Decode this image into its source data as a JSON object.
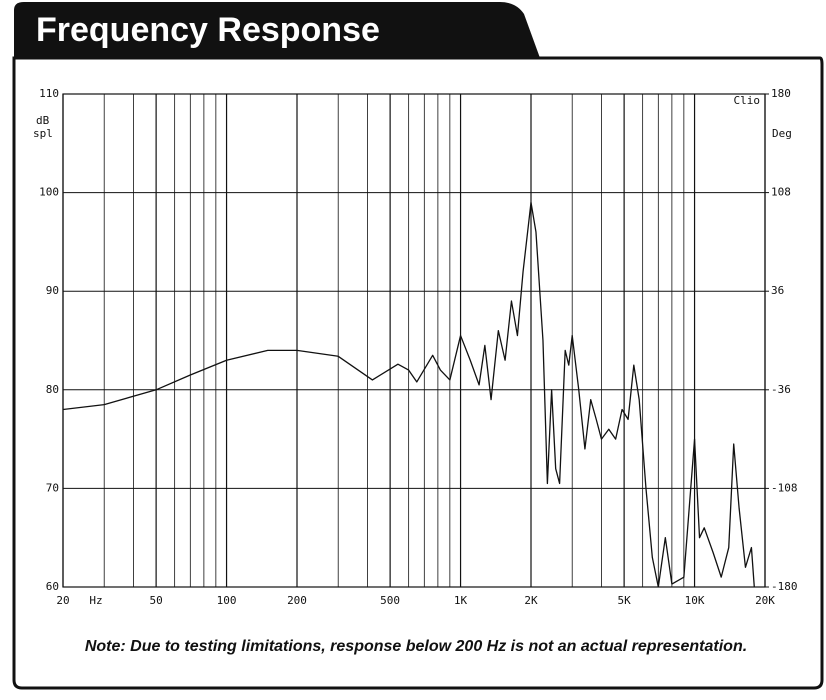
{
  "chart_data": {
    "type": "line",
    "title": "Frequency Response",
    "note": "Note:  Due to testing limitations, response below 200 Hz is not an actual representation.",
    "ylabel": [
      "dB",
      "spl"
    ],
    "y2label": "Deg",
    "watermark": "Clio",
    "x_unit": "Hz",
    "xlog": true,
    "grid": true,
    "xlim": [
      20,
      20000
    ],
    "xticks": [
      20,
      50,
      100,
      200,
      500,
      {
        "value": 1000,
        "label": "1K"
      },
      {
        "value": 2000,
        "label": "2K"
      },
      {
        "value": 5000,
        "label": "5K"
      },
      {
        "value": 10000,
        "label": "10K"
      },
      {
        "value": 20000,
        "label": "20K"
      }
    ],
    "xgrid": [
      30,
      40,
      60,
      70,
      80,
      90,
      300,
      400,
      600,
      700,
      800,
      900,
      3000,
      4000,
      6000,
      7000,
      8000,
      9000
    ],
    "ylim": [
      60,
      110
    ],
    "yticks": [
      60,
      70,
      80,
      90,
      100,
      110
    ],
    "y2lim": [
      -180,
      180
    ],
    "y2ticks": [
      -180,
      -108,
      -36,
      36,
      108,
      180
    ],
    "x": [
      20,
      30,
      50,
      70,
      100,
      150,
      200,
      300,
      420,
      540,
      600,
      650,
      760,
      820,
      900,
      1000,
      1100,
      1200,
      1270,
      1350,
      1450,
      1550,
      1650,
      1750,
      1850,
      2000,
      2100,
      2250,
      2350,
      2450,
      2550,
      2650,
      2800,
      2900,
      3000,
      3200,
      3400,
      3600,
      3800,
      4000,
      4300,
      4600,
      4900,
      5200,
      5500,
      5800,
      6200,
      6600,
      7000,
      7500,
      8000,
      9000,
      10000,
      10500,
      11000,
      12000,
      13000,
      14000,
      14700,
      15500,
      16500,
      17500,
      18000
    ],
    "series": [
      {
        "name": "SPL",
        "color": "#111111",
        "values": [
          78,
          78.5,
          80,
          81.5,
          83,
          84,
          84,
          83.4,
          81,
          82.6,
          82,
          80.8,
          83.5,
          82,
          81,
          85.5,
          83,
          80.5,
          84.5,
          79,
          86,
          83,
          89,
          85.5,
          92,
          99,
          96,
          85,
          70.5,
          80,
          72,
          70.5,
          84,
          82.5,
          85.5,
          80,
          74,
          79,
          77,
          75,
          76,
          75,
          78,
          77,
          82.5,
          79,
          70,
          63,
          60,
          65,
          60.3,
          61,
          75,
          65,
          66,
          63.5,
          61,
          64,
          74.5,
          68,
          62,
          64,
          60
        ]
      }
    ]
  }
}
